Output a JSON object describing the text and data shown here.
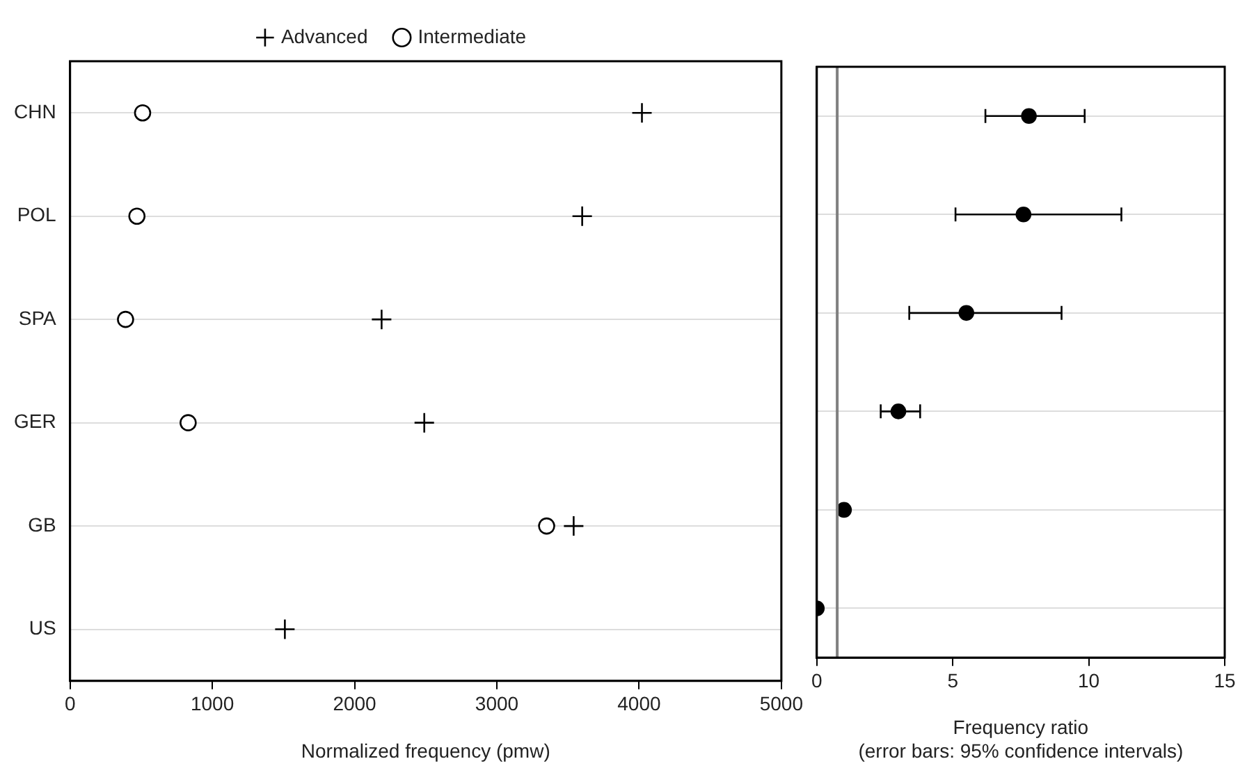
{
  "chart_data": [
    {
      "type": "scatter",
      "orientation": "horizontal",
      "categories": [
        "CHN",
        "POL",
        "SPA",
        "GER",
        "GB",
        "US"
      ],
      "series": [
        {
          "name": "Advanced",
          "color": "#000000",
          "marker": "cross",
          "values": [
            4020,
            3600,
            2190,
            2490,
            3540,
            1510
          ]
        },
        {
          "name": "Intermediate",
          "color": "#000000",
          "marker": "circle",
          "values": [
            510,
            470,
            390,
            830,
            3350,
            null
          ]
        }
      ],
      "xlim": [
        0,
        5000
      ],
      "xticks": [
        0,
        1000,
        2000,
        3000,
        4000,
        5000
      ],
      "xlabel": "Normalized frequency (pmw)",
      "grid": "y",
      "legend": "top"
    },
    {
      "type": "scatter",
      "orientation": "horizontal",
      "categories": [
        null,
        null,
        null,
        null,
        null,
        null
      ],
      "tick_labels": "x",
      "series": [
        {
          "color": "#000000",
          "marker": "circle",
          "values": [
            7.8,
            7.6,
            5.5,
            3.0,
            1.0,
            0
          ],
          "errors": [
            [
              6.2,
              9.85
            ],
            [
              5.1,
              11.2
            ],
            [
              3.4,
              9.0
            ],
            [
              2.35,
              3.8
            ],
            null,
            null
          ]
        }
      ],
      "xlim": [
        0,
        15
      ],
      "xticks": [
        0,
        5,
        10,
        15
      ],
      "xlabel": "Frequency ratio\n(error bars: 95% confidence intervals)",
      "grid": "y",
      "ref_lines": [
        {
          "axis": "x",
          "value": 0.75,
          "color": "#808080"
        }
      ]
    }
  ]
}
